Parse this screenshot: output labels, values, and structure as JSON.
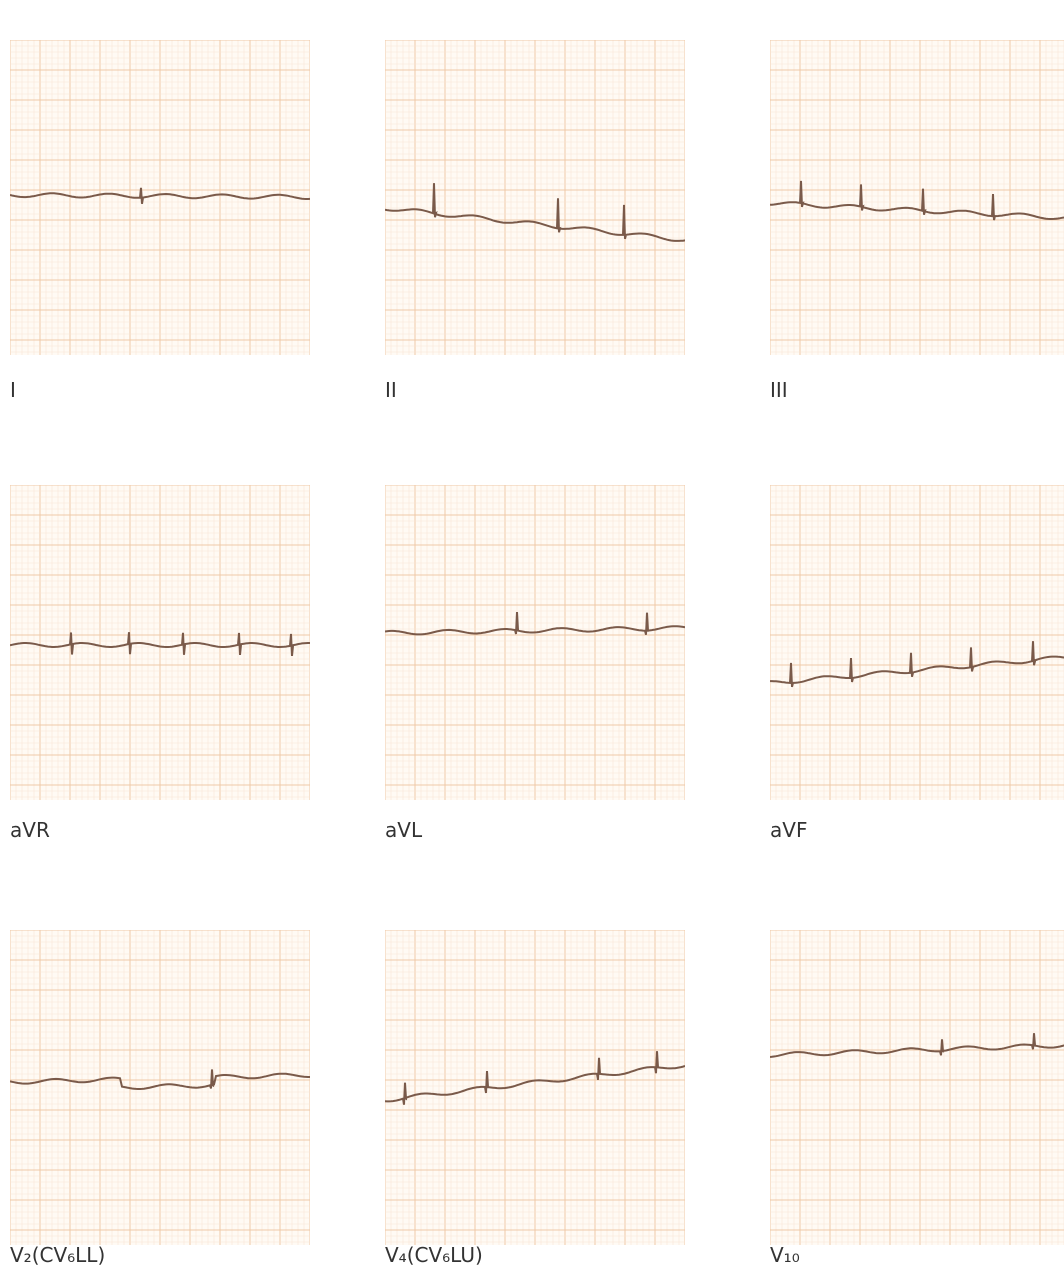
{
  "panels": [
    {
      "label": "I"
    },
    {
      "label": "II"
    },
    {
      "label": "III"
    },
    {
      "label": "aVR"
    },
    {
      "label": "aVL"
    },
    {
      "label": "aVF"
    },
    {
      "label": "V₂(CV₆LL)"
    },
    {
      "label": "V₄(CV₆LU)"
    },
    {
      "label": "V₁₀"
    }
  ]
}
